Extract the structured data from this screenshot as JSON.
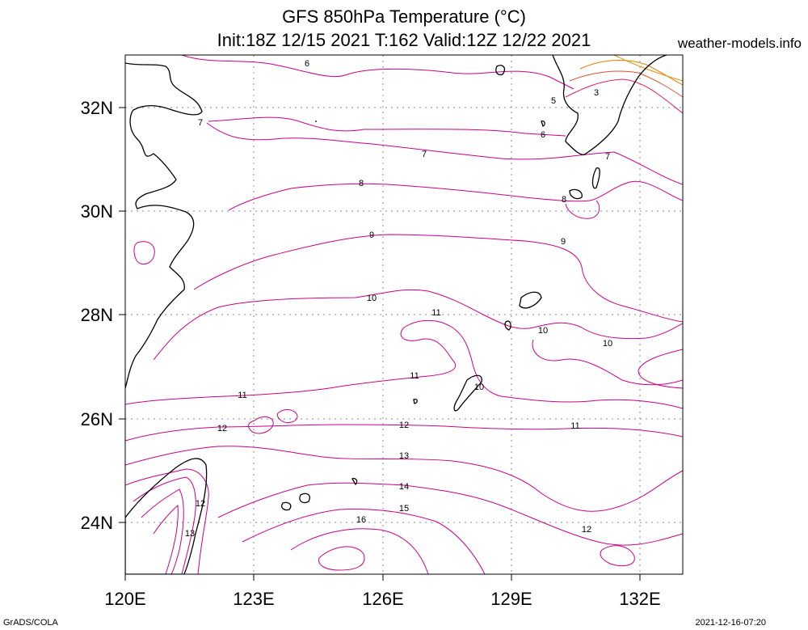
{
  "header": {
    "title": "GFS 850hPa Temperature (°C)",
    "subtitle": "Init:18Z 12/15 2021 T:162 Valid:12Z 12/22 2021",
    "site": "weather-models.info"
  },
  "footer": {
    "left": "GrADS/COLA",
    "right": "2021-12-16-07:20"
  },
  "map": {
    "lon_range": [
      120,
      132.8
    ],
    "lat_range": [
      23,
      33
    ],
    "lon_ticks": [
      "120E",
      "123E",
      "126E",
      "129E",
      "132E"
    ],
    "lat_ticks": [
      "24N",
      "26N",
      "28N",
      "30N",
      "32N"
    ],
    "grid": "dotted",
    "colors": {
      "warm": "#cc0088",
      "cool": "#e08000",
      "coast": "#000000"
    },
    "contour_labels": [
      "3",
      "5",
      "6",
      "6",
      "7",
      "7",
      "7",
      "8",
      "8",
      "9",
      "9",
      "10",
      "10",
      "10",
      "10",
      "11",
      "11",
      "11",
      "11",
      "12",
      "12",
      "12",
      "12",
      "13",
      "13",
      "14",
      "15",
      "16"
    ]
  }
}
